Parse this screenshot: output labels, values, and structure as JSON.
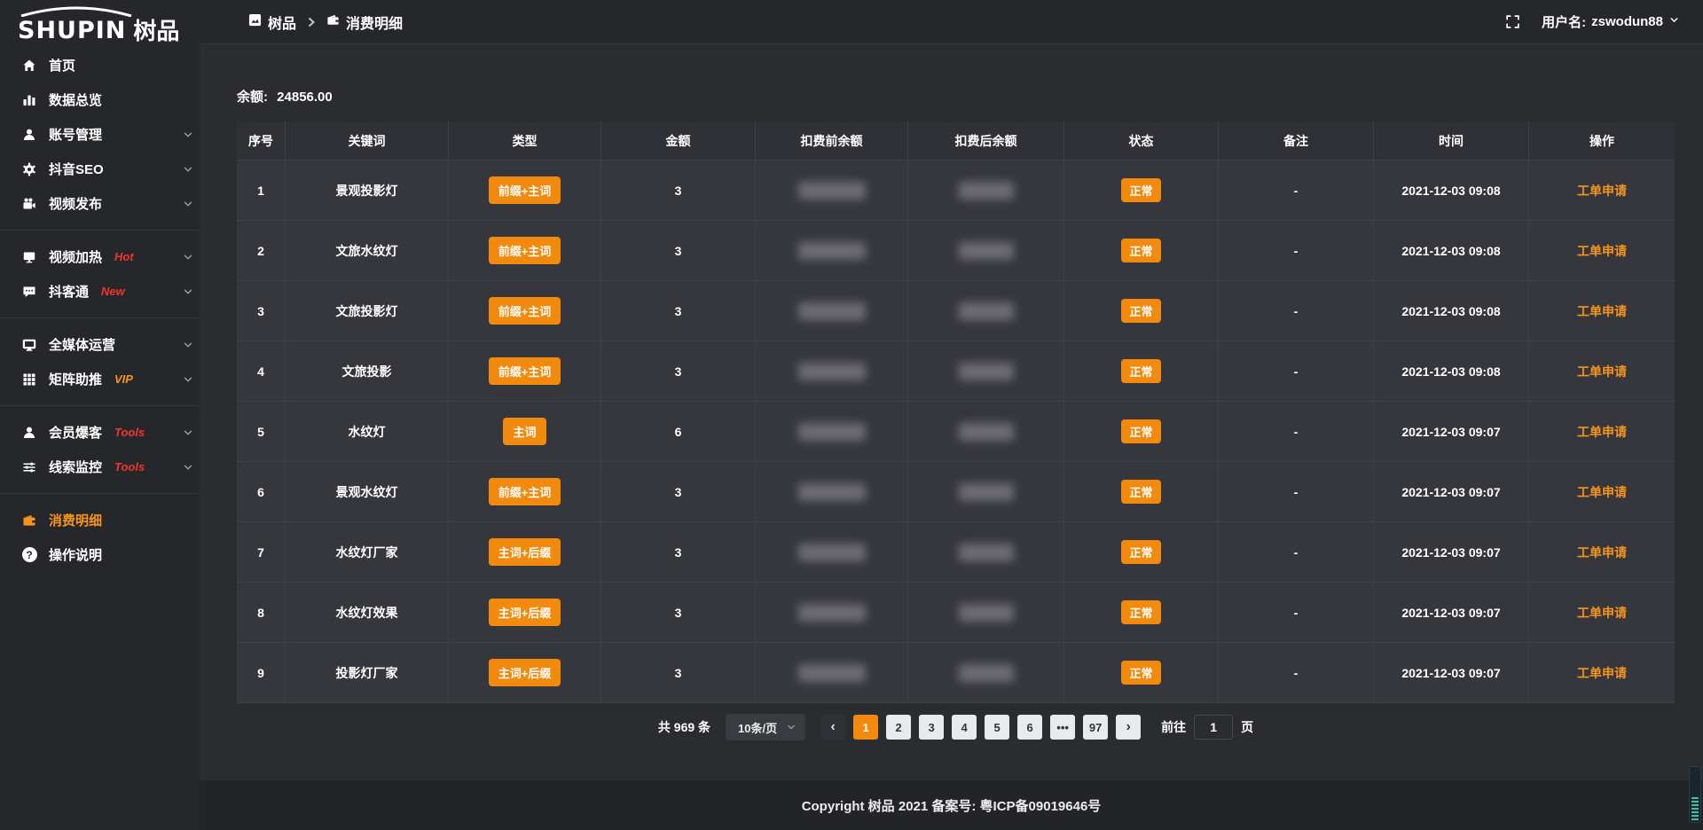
{
  "brand": {
    "logo_text": "SHUPIN",
    "logo_cn": "树品"
  },
  "topbar": {
    "breadcrumb": [
      {
        "icon": "app-icon",
        "label": "树品"
      },
      {
        "icon": "wallet-icon",
        "label": "消费明细"
      }
    ],
    "fullscreen_icon": "fullscreen-icon",
    "username_label": "用户名:",
    "username": "zswodun88"
  },
  "sidebar": {
    "items": [
      {
        "icon": "home-icon",
        "label": "首页"
      },
      {
        "icon": "bar-chart-icon",
        "label": "数据总览"
      },
      {
        "icon": "user-icon",
        "label": "账号管理",
        "chevron": true
      },
      {
        "icon": "gear-icon",
        "label": "抖音SEO",
        "chevron": true
      },
      {
        "icon": "video-camera-icon",
        "label": "视频发布",
        "chevron": true
      },
      {
        "icon": "monitor-icon",
        "label": "视频加热",
        "badge": "Hot",
        "badge_color": "red",
        "chevron": true
      },
      {
        "icon": "chat-icon",
        "label": "抖客通",
        "badge": "New",
        "badge_color": "red",
        "chevron": true
      },
      {
        "icon": "display-icon",
        "label": "全媒体运营",
        "chevron": true
      },
      {
        "icon": "grid-icon",
        "label": "矩阵助推",
        "badge": "VIP",
        "badge_color": "orange",
        "chevron": true
      },
      {
        "icon": "user-icon",
        "label": "会员爆客",
        "badge": "Tools",
        "badge_color": "red",
        "chevron": true
      },
      {
        "icon": "sliders-icon",
        "label": "线索监控",
        "badge": "Tools",
        "badge_color": "red",
        "chevron": true
      },
      {
        "icon": "wallet-icon",
        "label": "消费明细",
        "active": true
      },
      {
        "icon": "question-icon",
        "label": "操作说明"
      }
    ]
  },
  "main": {
    "balance_label": "余额:",
    "balance_value": "24856.00"
  },
  "table": {
    "columns": [
      "序号",
      "关键词",
      "类型",
      "金额",
      "扣费前余额",
      "扣费后余额",
      "状态",
      "备注",
      "时间",
      "操作"
    ],
    "redacted_columns_note": "扣费前余额/扣费后余额 values are blurred in the screenshot",
    "rows": [
      {
        "no": "1",
        "keyword": "景观投影灯",
        "type": "前缀+主词",
        "amount": "3",
        "status": "正常",
        "note": "-",
        "time": "2021-12-03 09:08",
        "action": "工单申请"
      },
      {
        "no": "2",
        "keyword": "文旅水纹灯",
        "type": "前缀+主词",
        "amount": "3",
        "status": "正常",
        "note": "-",
        "time": "2021-12-03 09:08",
        "action": "工单申请"
      },
      {
        "no": "3",
        "keyword": "文旅投影灯",
        "type": "前缀+主词",
        "amount": "3",
        "status": "正常",
        "note": "-",
        "time": "2021-12-03 09:08",
        "action": "工单申请"
      },
      {
        "no": "4",
        "keyword": "文旅投影",
        "type": "前缀+主词",
        "amount": "3",
        "status": "正常",
        "note": "-",
        "time": "2021-12-03 09:08",
        "action": "工单申请"
      },
      {
        "no": "5",
        "keyword": "水纹灯",
        "type": "主词",
        "amount": "6",
        "status": "正常",
        "note": "-",
        "time": "2021-12-03 09:07",
        "action": "工单申请"
      },
      {
        "no": "6",
        "keyword": "景观水纹灯",
        "type": "前缀+主词",
        "amount": "3",
        "status": "正常",
        "note": "-",
        "time": "2021-12-03 09:07",
        "action": "工单申请"
      },
      {
        "no": "7",
        "keyword": "水纹灯厂家",
        "type": "主词+后缀",
        "amount": "3",
        "status": "正常",
        "note": "-",
        "time": "2021-12-03 09:07",
        "action": "工单申请"
      },
      {
        "no": "8",
        "keyword": "水纹灯效果",
        "type": "主词+后缀",
        "amount": "3",
        "status": "正常",
        "note": "-",
        "time": "2021-12-03 09:07",
        "action": "工单申请"
      },
      {
        "no": "9",
        "keyword": "投影灯厂家",
        "type": "主词+后缀",
        "amount": "3",
        "status": "正常",
        "note": "-",
        "time": "2021-12-03 09:07",
        "action": "工单申请"
      }
    ]
  },
  "pagination": {
    "total_label": "共 969 条",
    "page_size_label": "10条/页",
    "prev_label": "‹",
    "next_label": "›",
    "pages": [
      "1",
      "2",
      "3",
      "4",
      "5",
      "6",
      "•••",
      "97"
    ],
    "active_page": "1",
    "goto_label": "前往",
    "goto_value": "1",
    "goto_suffix": "页"
  },
  "footer": {
    "copyright": "Copyright 树品 2021 备案号: 粤ICP备09019646号"
  },
  "colors": {
    "accent_orange": "#f28a0e",
    "link_orange": "#f7941e",
    "hot_red": "#f4342e",
    "sidebar_bg": "#26272b",
    "row_bg": "#36373d",
    "teal_widget": "#35c9a3"
  }
}
